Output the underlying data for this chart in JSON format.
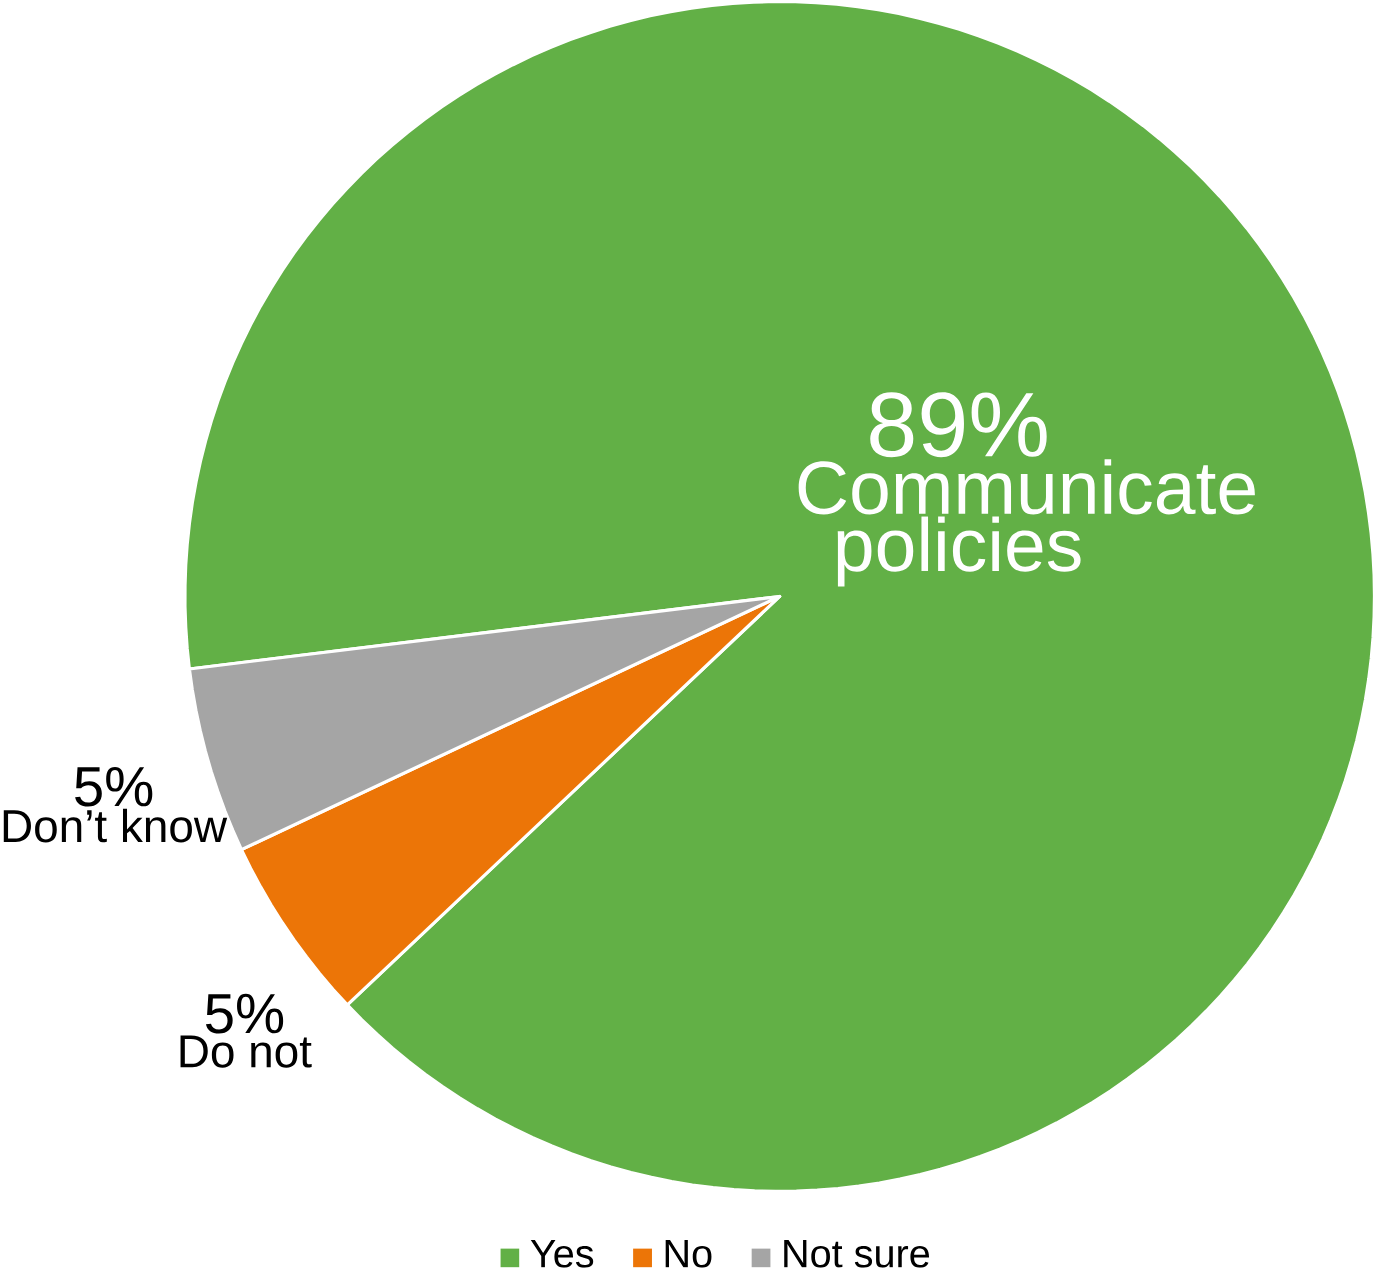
{
  "chart_data": {
    "type": "pie",
    "categories": [
      "Yes",
      "No",
      "Not sure"
    ],
    "values": [
      89,
      5,
      5
    ],
    "colors": [
      "#62b046",
      "#ec7507",
      "#a5a5a5"
    ],
    "value_labels": [
      "89%",
      "5%",
      "5%"
    ],
    "annotations": [
      "Communicate policies",
      "Do not",
      "Don’t know"
    ],
    "legend": "bottom"
  }
}
